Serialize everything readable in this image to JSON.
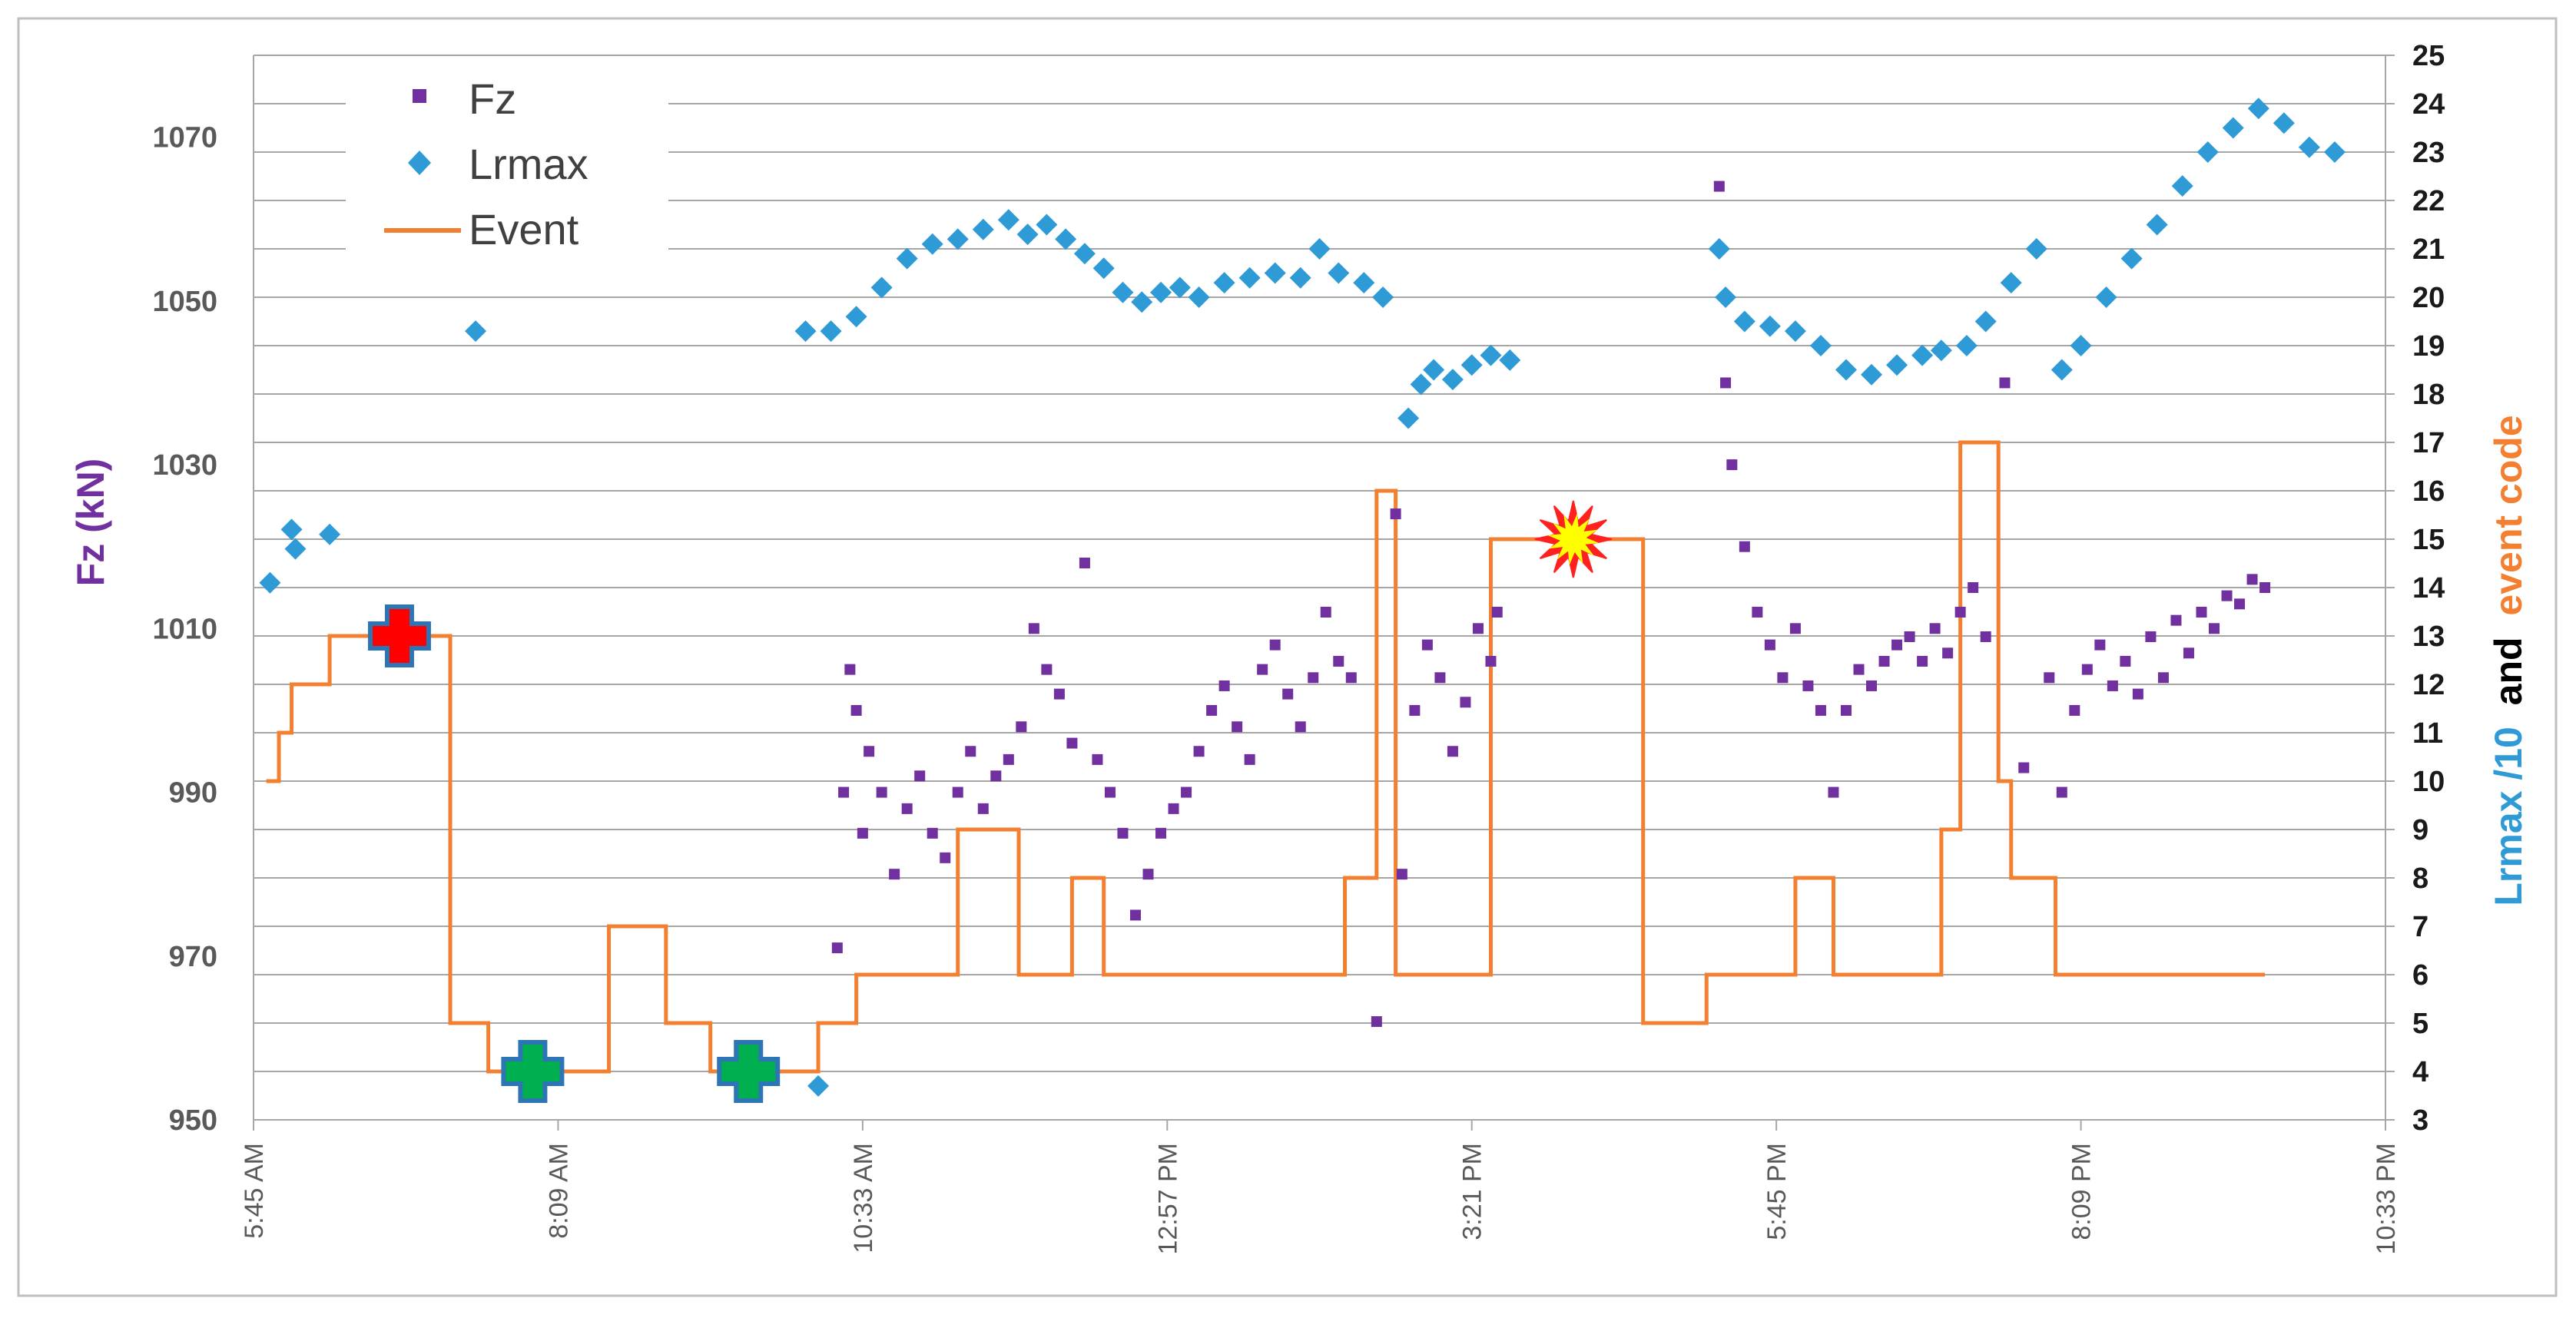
{
  "chart_data": {
    "type": "scatter",
    "title": "",
    "xlabel": "",
    "x_range_hours": [
      5.75,
      22.55
    ],
    "x_ticks": [
      "5:45 AM",
      "8:09 AM",
      "10:33 AM",
      "12:57 PM",
      "3:21 PM",
      "5:45 PM",
      "8:09 PM",
      "10:33 PM"
    ],
    "y_left": {
      "label": "Fz (kN)",
      "range": [
        950,
        1080
      ],
      "ticks": [
        950,
        970,
        990,
        1010,
        1030,
        1050,
        1070
      ]
    },
    "y_right": {
      "label_parts": [
        "Lrmax /10",
        "and",
        "event code"
      ],
      "label_colors": [
        "#2e9ad6",
        "#000000",
        "#f28030"
      ],
      "range": [
        3,
        25
      ],
      "ticks": [
        3,
        4,
        5,
        6,
        7,
        8,
        9,
        10,
        11,
        12,
        13,
        14,
        15,
        16,
        17,
        18,
        19,
        20,
        21,
        22,
        23,
        24,
        25
      ]
    },
    "legend": {
      "position": "top-left",
      "items": [
        {
          "name": "Fz",
          "marker": "square",
          "color": "#7030a0"
        },
        {
          "name": "Lrmax",
          "marker": "diamond",
          "color": "#2e9ad6"
        },
        {
          "name": "Event",
          "marker": "line",
          "color": "#f28030"
        }
      ]
    },
    "series": [
      {
        "name": "Event",
        "type": "step",
        "axis": "right",
        "color": "#f28030",
        "points": [
          [
            5.85,
            10
          ],
          [
            5.95,
            11
          ],
          [
            6.05,
            12
          ],
          [
            6.35,
            13
          ],
          [
            7.3,
            5
          ],
          [
            7.6,
            4
          ],
          [
            8.55,
            7
          ],
          [
            9.0,
            5
          ],
          [
            9.35,
            4
          ],
          [
            10.2,
            5
          ],
          [
            10.5,
            6
          ],
          [
            11.3,
            9
          ],
          [
            11.78,
            6
          ],
          [
            12.2,
            8
          ],
          [
            12.45,
            6
          ],
          [
            14.35,
            8
          ],
          [
            14.6,
            16
          ],
          [
            14.75,
            6
          ],
          [
            15.5,
            15
          ],
          [
            16.7,
            5
          ],
          [
            17.2,
            6
          ],
          [
            17.9,
            8
          ],
          [
            18.2,
            6
          ],
          [
            19.05,
            9
          ],
          [
            19.2,
            17
          ],
          [
            19.5,
            10
          ],
          [
            19.6,
            8
          ],
          [
            19.95,
            6
          ],
          [
            21.6,
            6
          ]
        ]
      },
      {
        "name": "Lrmax",
        "type": "scatter",
        "axis": "right",
        "color": "#2e9ad6",
        "points": [
          [
            5.88,
            14.1
          ],
          [
            6.05,
            15.2
          ],
          [
            6.08,
            14.8
          ],
          [
            6.35,
            15.1
          ],
          [
            7.5,
            19.3
          ],
          [
            10.2,
            3.7
          ],
          [
            10.1,
            19.3
          ],
          [
            10.3,
            19.3
          ],
          [
            10.5,
            19.6
          ],
          [
            10.7,
            20.2
          ],
          [
            10.9,
            20.8
          ],
          [
            11.1,
            21.1
          ],
          [
            11.3,
            21.2
          ],
          [
            11.5,
            21.4
          ],
          [
            11.7,
            21.6
          ],
          [
            11.85,
            21.3
          ],
          [
            12.0,
            21.5
          ],
          [
            12.15,
            21.2
          ],
          [
            12.3,
            20.9
          ],
          [
            12.45,
            20.6
          ],
          [
            12.6,
            20.1
          ],
          [
            12.75,
            19.9
          ],
          [
            12.9,
            20.1
          ],
          [
            13.05,
            20.2
          ],
          [
            13.2,
            20.0
          ],
          [
            13.4,
            20.3
          ],
          [
            13.6,
            20.4
          ],
          [
            13.8,
            20.5
          ],
          [
            14.0,
            20.4
          ],
          [
            14.15,
            21.0
          ],
          [
            14.3,
            20.5
          ],
          [
            14.5,
            20.3
          ],
          [
            14.65,
            20.0
          ],
          [
            14.85,
            17.5
          ],
          [
            14.95,
            18.2
          ],
          [
            15.05,
            18.5
          ],
          [
            15.2,
            18.3
          ],
          [
            15.35,
            18.6
          ],
          [
            15.5,
            18.8
          ],
          [
            15.65,
            18.7
          ],
          [
            17.3,
            21.0
          ],
          [
            17.35,
            20.0
          ],
          [
            17.5,
            19.5
          ],
          [
            17.7,
            19.4
          ],
          [
            17.9,
            19.3
          ],
          [
            18.1,
            19.0
          ],
          [
            18.3,
            18.5
          ],
          [
            18.5,
            18.4
          ],
          [
            18.7,
            18.6
          ],
          [
            18.9,
            18.8
          ],
          [
            19.05,
            18.9
          ],
          [
            19.25,
            19.0
          ],
          [
            19.4,
            19.5
          ],
          [
            19.6,
            20.3
          ],
          [
            19.8,
            21.0
          ],
          [
            20.0,
            18.5
          ],
          [
            20.15,
            19.0
          ],
          [
            20.35,
            20.0
          ],
          [
            20.55,
            20.8
          ],
          [
            20.75,
            21.5
          ],
          [
            20.95,
            22.3
          ],
          [
            21.15,
            23.0
          ],
          [
            21.35,
            23.5
          ],
          [
            21.55,
            23.9
          ],
          [
            21.75,
            23.6
          ],
          [
            21.95,
            23.1
          ],
          [
            22.15,
            23.0
          ]
        ]
      },
      {
        "name": "Fz",
        "type": "scatter",
        "axis": "left",
        "color": "#7030a0",
        "points": [
          [
            10.35,
            971
          ],
          [
            10.4,
            990
          ],
          [
            10.45,
            1005
          ],
          [
            10.5,
            1000
          ],
          [
            10.55,
            985
          ],
          [
            10.6,
            995
          ],
          [
            10.7,
            990
          ],
          [
            10.8,
            980
          ],
          [
            10.9,
            988
          ],
          [
            11.0,
            992
          ],
          [
            11.1,
            985
          ],
          [
            11.2,
            982
          ],
          [
            11.3,
            990
          ],
          [
            11.4,
            995
          ],
          [
            11.5,
            988
          ],
          [
            11.6,
            992
          ],
          [
            11.7,
            994
          ],
          [
            11.8,
            998
          ],
          [
            11.9,
            1010
          ],
          [
            12.0,
            1005
          ],
          [
            12.1,
            1002
          ],
          [
            12.2,
            996
          ],
          [
            12.3,
            1018
          ],
          [
            12.4,
            994
          ],
          [
            12.5,
            990
          ],
          [
            12.6,
            985
          ],
          [
            12.7,
            975
          ],
          [
            12.8,
            980
          ],
          [
            12.9,
            985
          ],
          [
            13.0,
            988
          ],
          [
            13.1,
            990
          ],
          [
            13.2,
            995
          ],
          [
            13.3,
            1000
          ],
          [
            13.4,
            1003
          ],
          [
            13.5,
            998
          ],
          [
            13.6,
            994
          ],
          [
            13.7,
            1005
          ],
          [
            13.8,
            1008
          ],
          [
            13.9,
            1002
          ],
          [
            14.0,
            998
          ],
          [
            14.1,
            1004
          ],
          [
            14.2,
            1012
          ],
          [
            14.3,
            1006
          ],
          [
            14.4,
            1004
          ],
          [
            14.6,
            962
          ],
          [
            14.75,
            1024
          ],
          [
            14.8,
            980
          ],
          [
            14.9,
            1000
          ],
          [
            15.0,
            1008
          ],
          [
            15.1,
            1004
          ],
          [
            15.2,
            995
          ],
          [
            15.3,
            1001
          ],
          [
            15.4,
            1010
          ],
          [
            15.5,
            1006
          ],
          [
            15.55,
            1012
          ],
          [
            17.3,
            1064
          ],
          [
            17.35,
            1040
          ],
          [
            17.4,
            1030
          ],
          [
            17.5,
            1020
          ],
          [
            17.6,
            1012
          ],
          [
            17.7,
            1008
          ],
          [
            17.8,
            1004
          ],
          [
            17.9,
            1010
          ],
          [
            18.0,
            1003
          ],
          [
            18.1,
            1000
          ],
          [
            18.2,
            990
          ],
          [
            18.3,
            1000
          ],
          [
            18.4,
            1005
          ],
          [
            18.5,
            1003
          ],
          [
            18.6,
            1006
          ],
          [
            18.7,
            1008
          ],
          [
            18.8,
            1009
          ],
          [
            18.9,
            1006
          ],
          [
            19.0,
            1010
          ],
          [
            19.1,
            1007
          ],
          [
            19.2,
            1012
          ],
          [
            19.3,
            1015
          ],
          [
            19.4,
            1009
          ],
          [
            19.55,
            1040
          ],
          [
            19.7,
            993
          ],
          [
            19.9,
            1004
          ],
          [
            20.0,
            990
          ],
          [
            20.1,
            1000
          ],
          [
            20.2,
            1005
          ],
          [
            20.3,
            1008
          ],
          [
            20.4,
            1003
          ],
          [
            20.5,
            1006
          ],
          [
            20.6,
            1002
          ],
          [
            20.7,
            1009
          ],
          [
            20.8,
            1004
          ],
          [
            20.9,
            1011
          ],
          [
            21.0,
            1007
          ],
          [
            21.1,
            1012
          ],
          [
            21.2,
            1010
          ],
          [
            21.3,
            1014
          ],
          [
            21.4,
            1013
          ],
          [
            21.5,
            1016
          ],
          [
            21.6,
            1015
          ]
        ]
      }
    ],
    "annotations": [
      {
        "name": "red-cross",
        "x_hours": 6.9,
        "value": 13,
        "axis": "right",
        "color": "#ff0000"
      },
      {
        "name": "green-cross",
        "x_hours": 7.95,
        "value": 4,
        "axis": "right",
        "color": "#00b050"
      },
      {
        "name": "green-cross",
        "x_hours": 9.65,
        "value": 4,
        "axis": "right",
        "color": "#00b050"
      },
      {
        "name": "explosion",
        "x_hours": 16.15,
        "value": 15,
        "axis": "right",
        "color": "#ffff00"
      }
    ],
    "grid": true
  }
}
